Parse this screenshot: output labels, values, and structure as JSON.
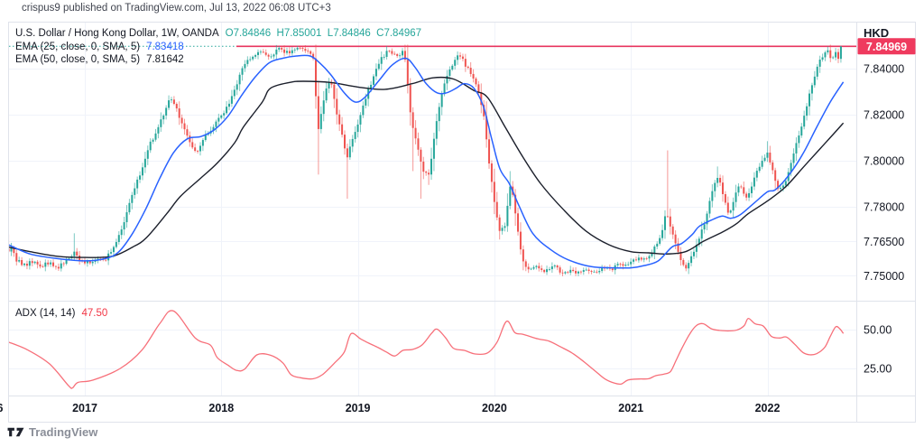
{
  "attribution": "crispus9 published on TradingView.com, Jul 13, 2022 06:08 UTC+3",
  "watermark": "TradingView",
  "legend": {
    "symbol": "U.S. Dollar / Hong Kong Dollar, 1W, OANDA",
    "ohlc": "O7.84846  H7.85001  L7.84846  C7.84967",
    "ema25_label": "EMA (25, close, 0, SMA, 5)",
    "ema25_value": "7.83418",
    "ema50_label": "EMA (50, close, 0, SMA, 5)",
    "ema50_value": "7.81642"
  },
  "adx_legend": {
    "label": "ADX (14, 14)",
    "value": "47.50"
  },
  "price_axis": {
    "currency": "HKD",
    "ticks": [
      {
        "label": "7.84000",
        "value": 7.84
      },
      {
        "label": "7.82000",
        "value": 7.82
      },
      {
        "label": "7.80000",
        "value": 7.8
      },
      {
        "label": "7.78000",
        "value": 7.78
      },
      {
        "label": "7.76500",
        "value": 7.765
      },
      {
        "label": "7.75000",
        "value": 7.75
      }
    ],
    "last_price_label": "7.84969",
    "last_price": 7.84969
  },
  "adx_axis": {
    "ticks": [
      {
        "label": "50.00",
        "value": 50
      },
      {
        "label": "25.00",
        "value": 25
      }
    ]
  },
  "time_axis": {
    "ticks": [
      {
        "label": "2017",
        "year": 2017
      },
      {
        "label": "2018",
        "year": 2018
      },
      {
        "label": "2019",
        "year": 2019
      },
      {
        "label": "2020",
        "year": 2020
      },
      {
        "label": "2021",
        "year": 2021
      },
      {
        "label": "2022",
        "year": 2022
      }
    ],
    "left_fragment": "6"
  },
  "colors": {
    "up": "#26a69a",
    "down": "#ef5350",
    "ema25": "#2962ff",
    "ema50": "#1b1f2b",
    "adx_line": "#f7707a",
    "adx_value": "#f23645",
    "price_line": "#e8345f",
    "dotted_price_line": "#26a69a",
    "badge_bg": "#ef3a5e",
    "badge_text": "#ffffff",
    "grid": "#f0f3fa",
    "border": "#e0e3eb",
    "axis_text": "#131722",
    "teal_text": "#26a69a",
    "muted_text": "#8a8e98"
  },
  "chart_data": {
    "type": "candlestick",
    "title": "U.S. Dollar / Hong Kong Dollar, 1W, OANDA",
    "panes": [
      "price with EMA(25) and EMA(50)",
      "ADX(14,14)"
    ],
    "x_domain_years": [
      2016.442,
      2022.556
    ],
    "price_axis_visible_range": [
      7.739,
      7.86
    ],
    "adx_axis_visible_range": [
      7.6,
      68.6
    ],
    "last_close": 7.84969,
    "horizontal_line": {
      "price": 7.84969,
      "start_year": 2018.11
    },
    "dotted_price_line_level": 7.84969,
    "close_anchors": [
      [
        2016.442,
        7.7605
      ],
      [
        2016.46,
        7.7625
      ],
      [
        2016.5,
        7.757
      ],
      [
        2016.56,
        7.7545
      ],
      [
        2016.62,
        7.7565
      ],
      [
        2016.68,
        7.754
      ],
      [
        2016.74,
        7.756
      ],
      [
        2016.8,
        7.7535
      ],
      [
        2016.86,
        7.7565
      ],
      [
        2016.92,
        7.7605
      ],
      [
        2016.96,
        7.757
      ],
      [
        2017.02,
        7.7555
      ],
      [
        2017.08,
        7.7575
      ],
      [
        2017.14,
        7.756
      ],
      [
        2017.18,
        7.7595
      ],
      [
        2017.24,
        7.7655
      ],
      [
        2017.3,
        7.7755
      ],
      [
        2017.36,
        7.7875
      ],
      [
        2017.42,
        7.797
      ],
      [
        2017.48,
        7.8075
      ],
      [
        2017.54,
        7.8145
      ],
      [
        2017.58,
        7.8205
      ],
      [
        2017.63,
        7.8275
      ],
      [
        2017.67,
        7.8225
      ],
      [
        2017.72,
        7.8155
      ],
      [
        2017.78,
        7.8065
      ],
      [
        2017.82,
        7.8035
      ],
      [
        2017.87,
        7.8095
      ],
      [
        2017.93,
        7.8145
      ],
      [
        2018.0,
        7.8195
      ],
      [
        2018.06,
        7.8245
      ],
      [
        2018.12,
        7.8345
      ],
      [
        2018.17,
        7.8425
      ],
      [
        2018.22,
        7.8455
      ],
      [
        2018.28,
        7.8475
      ],
      [
        2018.35,
        7.8445
      ],
      [
        2018.42,
        7.8485
      ],
      [
        2018.5,
        7.8465
      ],
      [
        2018.56,
        7.8485
      ],
      [
        2018.62,
        7.8475
      ],
      [
        2018.68,
        7.8445
      ],
      [
        2018.705,
        7.8115
      ],
      [
        2018.76,
        7.8305
      ],
      [
        2018.8,
        7.8355
      ],
      [
        2018.84,
        7.8215
      ],
      [
        2018.88,
        7.8115
      ],
      [
        2018.92,
        7.8015
      ],
      [
        2018.96,
        7.8085
      ],
      [
        2019.0,
        7.8165
      ],
      [
        2019.05,
        7.8265
      ],
      [
        2019.1,
        7.8345
      ],
      [
        2019.16,
        7.8435
      ],
      [
        2019.22,
        7.8475
      ],
      [
        2019.28,
        7.8455
      ],
      [
        2019.34,
        7.8475
      ],
      [
        2019.39,
        7.8185
      ],
      [
        2019.43,
        7.8085
      ],
      [
        2019.47,
        7.7965
      ],
      [
        2019.52,
        7.7945
      ],
      [
        2019.57,
        7.8145
      ],
      [
        2019.62,
        7.8305
      ],
      [
        2019.68,
        7.8405
      ],
      [
        2019.73,
        7.8465
      ],
      [
        2019.78,
        7.8425
      ],
      [
        2019.83,
        7.8375
      ],
      [
        2019.88,
        7.8305
      ],
      [
        2019.92,
        7.8205
      ],
      [
        2019.96,
        7.7995
      ],
      [
        2020.0,
        7.7815
      ],
      [
        2020.04,
        7.7695
      ],
      [
        2020.08,
        7.7725
      ],
      [
        2020.12,
        7.7905
      ],
      [
        2020.16,
        7.7755
      ],
      [
        2020.2,
        7.7575
      ],
      [
        2020.25,
        7.7525
      ],
      [
        2020.31,
        7.7535
      ],
      [
        2020.37,
        7.7515
      ],
      [
        2020.43,
        7.7545
      ],
      [
        2020.49,
        7.7515
      ],
      [
        2020.55,
        7.7525
      ],
      [
        2020.61,
        7.7515
      ],
      [
        2020.67,
        7.7525
      ],
      [
        2020.73,
        7.7515
      ],
      [
        2020.79,
        7.7535
      ],
      [
        2020.85,
        7.7525
      ],
      [
        2020.91,
        7.7555
      ],
      [
        2020.97,
        7.7545
      ],
      [
        2021.03,
        7.7575
      ],
      [
        2021.09,
        7.7565
      ],
      [
        2021.15,
        7.7605
      ],
      [
        2021.21,
        7.7655
      ],
      [
        2021.26,
        7.7775
      ],
      [
        2021.3,
        7.7695
      ],
      [
        2021.35,
        7.7595
      ],
      [
        2021.4,
        7.7535
      ],
      [
        2021.45,
        7.7595
      ],
      [
        2021.5,
        7.7655
      ],
      [
        2021.55,
        7.7755
      ],
      [
        2021.6,
        7.7875
      ],
      [
        2021.64,
        7.7935
      ],
      [
        2021.68,
        7.7845
      ],
      [
        2021.72,
        7.7765
      ],
      [
        2021.76,
        7.7845
      ],
      [
        2021.8,
        7.7895
      ],
      [
        2021.84,
        7.7825
      ],
      [
        2021.88,
        7.7885
      ],
      [
        2021.92,
        7.7945
      ],
      [
        2021.96,
        7.7995
      ],
      [
        2022.0,
        7.8035
      ],
      [
        2022.04,
        7.7955
      ],
      [
        2022.08,
        7.7865
      ],
      [
        2022.12,
        7.7895
      ],
      [
        2022.16,
        7.7965
      ],
      [
        2022.2,
        7.8045
      ],
      [
        2022.24,
        7.8135
      ],
      [
        2022.28,
        7.8225
      ],
      [
        2022.32,
        7.8315
      ],
      [
        2022.36,
        7.8395
      ],
      [
        2022.4,
        7.8455
      ],
      [
        2022.44,
        7.8485
      ],
      [
        2022.47,
        7.8435
      ],
      [
        2022.5,
        7.8475
      ],
      [
        2022.52,
        7.8445
      ],
      [
        2022.556,
        7.84969
      ]
    ],
    "wick_spikes": [
      {
        "t": 2016.444,
        "hi": 7.768
      },
      {
        "t": 2016.93,
        "hi": 7.7685
      },
      {
        "t": 2018.705,
        "lo": 7.794
      },
      {
        "t": 2018.92,
        "lo": 7.7835
      },
      {
        "t": 2019.4,
        "lo": 7.7955
      },
      {
        "t": 2019.47,
        "lo": 7.7835
      },
      {
        "t": 2019.52,
        "lo": 7.7895
      },
      {
        "t": 2020.12,
        "hi": 7.7955
      },
      {
        "t": 2021.26,
        "hi": 7.8045
      },
      {
        "t": 2021.64,
        "hi": 7.7975
      },
      {
        "t": 2022.0,
        "hi": 7.8085
      }
    ],
    "ema25_anchors": [
      [
        2016.442,
        7.7635
      ],
      [
        2016.6,
        7.7595
      ],
      [
        2016.8,
        7.7575
      ],
      [
        2017.0,
        7.7565
      ],
      [
        2017.15,
        7.7575
      ],
      [
        2017.25,
        7.7605
      ],
      [
        2017.35,
        7.7685
      ],
      [
        2017.45,
        7.7795
      ],
      [
        2017.55,
        7.7925
      ],
      [
        2017.65,
        7.8035
      ],
      [
        2017.75,
        7.8095
      ],
      [
        2017.85,
        7.8105
      ],
      [
        2017.95,
        7.8135
      ],
      [
        2018.05,
        7.8195
      ],
      [
        2018.15,
        7.8285
      ],
      [
        2018.25,
        7.8365
      ],
      [
        2018.35,
        7.8425
      ],
      [
        2018.45,
        7.8445
      ],
      [
        2018.55,
        7.8455
      ],
      [
        2018.65,
        7.8455
      ],
      [
        2018.72,
        7.8425
      ],
      [
        2018.8,
        7.8375
      ],
      [
        2018.9,
        7.8295
      ],
      [
        2018.98,
        7.8255
      ],
      [
        2019.05,
        7.8275
      ],
      [
        2019.15,
        7.8345
      ],
      [
        2019.25,
        7.8415
      ],
      [
        2019.35,
        7.8445
      ],
      [
        2019.42,
        7.8405
      ],
      [
        2019.5,
        7.8335
      ],
      [
        2019.58,
        7.8295
      ],
      [
        2019.65,
        7.8295
      ],
      [
        2019.72,
        7.8315
      ],
      [
        2019.78,
        7.8335
      ],
      [
        2019.85,
        7.8315
      ],
      [
        2019.92,
        7.8235
      ],
      [
        2019.98,
        7.8095
      ],
      [
        2020.04,
        7.7965
      ],
      [
        2020.11,
        7.79
      ],
      [
        2020.18,
        7.7805
      ],
      [
        2020.28,
        7.7685
      ],
      [
        2020.41,
        7.7615
      ],
      [
        2020.54,
        7.757
      ],
      [
        2020.71,
        7.754
      ],
      [
        2020.87,
        7.7535
      ],
      [
        2021.0,
        7.7535
      ],
      [
        2021.1,
        7.7545
      ],
      [
        2021.2,
        7.7565
      ],
      [
        2021.3,
        7.7625
      ],
      [
        2021.37,
        7.764
      ],
      [
        2021.45,
        7.768
      ],
      [
        2021.5,
        7.7715
      ],
      [
        2021.6,
        7.7745
      ],
      [
        2021.67,
        7.776
      ],
      [
        2021.73,
        7.775
      ],
      [
        2021.8,
        7.7765
      ],
      [
        2021.9,
        7.7815
      ],
      [
        2022.0,
        7.7865
      ],
      [
        2022.06,
        7.7875
      ],
      [
        2022.16,
        7.794
      ],
      [
        2022.26,
        7.803
      ],
      [
        2022.36,
        7.8145
      ],
      [
        2022.46,
        7.8255
      ],
      [
        2022.556,
        7.8342
      ]
    ],
    "ema50_anchors": [
      [
        2016.442,
        7.7625
      ],
      [
        2016.6,
        7.7605
      ],
      [
        2016.8,
        7.7585
      ],
      [
        2017.0,
        7.758
      ],
      [
        2017.2,
        7.7585
      ],
      [
        2017.35,
        7.7625
      ],
      [
        2017.45,
        7.7665
      ],
      [
        2017.6,
        7.777
      ],
      [
        2017.7,
        7.7845
      ],
      [
        2017.85,
        7.7925
      ],
      [
        2017.97,
        7.799
      ],
      [
        2018.1,
        7.808
      ],
      [
        2018.16,
        7.8145
      ],
      [
        2018.3,
        7.8255
      ],
      [
        2018.36,
        7.8315
      ],
      [
        2018.5,
        7.834
      ],
      [
        2018.6,
        7.8345
      ],
      [
        2018.8,
        7.834
      ],
      [
        2019.0,
        7.832
      ],
      [
        2019.2,
        7.831
      ],
      [
        2019.4,
        7.8335
      ],
      [
        2019.55,
        7.836
      ],
      [
        2019.7,
        7.8355
      ],
      [
        2019.85,
        7.8305
      ],
      [
        2019.95,
        7.8275
      ],
      [
        2020.08,
        7.8145
      ],
      [
        2020.21,
        7.8015
      ],
      [
        2020.34,
        7.79
      ],
      [
        2020.51,
        7.7785
      ],
      [
        2020.67,
        7.7695
      ],
      [
        2020.84,
        7.7635
      ],
      [
        2021.0,
        7.7605
      ],
      [
        2021.13,
        7.76
      ],
      [
        2021.25,
        7.7595
      ],
      [
        2021.4,
        7.7605
      ],
      [
        2021.53,
        7.765
      ],
      [
        2021.67,
        7.769
      ],
      [
        2021.77,
        7.7725
      ],
      [
        2021.86,
        7.777
      ],
      [
        2022.0,
        7.7825
      ],
      [
        2022.13,
        7.7885
      ],
      [
        2022.26,
        7.797
      ],
      [
        2022.39,
        7.8055
      ],
      [
        2022.49,
        7.812
      ],
      [
        2022.556,
        7.8164
      ]
    ],
    "adx_anchors": [
      [
        2016.44,
        42
      ],
      [
        2016.58,
        37
      ],
      [
        2016.74,
        28
      ],
      [
        2016.88,
        14
      ],
      [
        2016.91,
        12.5
      ],
      [
        2016.95,
        16
      ],
      [
        2017.06,
        17.5
      ],
      [
        2017.26,
        25
      ],
      [
        2017.42,
        37
      ],
      [
        2017.55,
        54
      ],
      [
        2017.65,
        62
      ],
      [
        2017.81,
        44.5
      ],
      [
        2017.92,
        40
      ],
      [
        2017.97,
        32
      ],
      [
        2018.05,
        27
      ],
      [
        2018.11,
        23.8
      ],
      [
        2018.17,
        24.5
      ],
      [
        2018.26,
        33.7
      ],
      [
        2018.36,
        33.5
      ],
      [
        2018.45,
        28.6
      ],
      [
        2018.51,
        21
      ],
      [
        2018.58,
        19
      ],
      [
        2018.67,
        18.3
      ],
      [
        2018.74,
        21
      ],
      [
        2018.83,
        28.6
      ],
      [
        2018.9,
        35.5
      ],
      [
        2018.95,
        47.3
      ],
      [
        2019.02,
        44
      ],
      [
        2019.08,
        41.3
      ],
      [
        2019.15,
        38.4
      ],
      [
        2019.21,
        35.5
      ],
      [
        2019.27,
        33
      ],
      [
        2019.33,
        36.6
      ],
      [
        2019.4,
        37.2
      ],
      [
        2019.47,
        40.1
      ],
      [
        2019.54,
        47.6
      ],
      [
        2019.58,
        50.3
      ],
      [
        2019.64,
        45
      ],
      [
        2019.7,
        38
      ],
      [
        2019.78,
        36.6
      ],
      [
        2019.86,
        34.3
      ],
      [
        2019.95,
        35
      ],
      [
        2020.02,
        42
      ],
      [
        2020.09,
        55.4
      ],
      [
        2020.15,
        48
      ],
      [
        2020.21,
        47
      ],
      [
        2020.32,
        44
      ],
      [
        2020.4,
        42.6
      ],
      [
        2020.48,
        39.1
      ],
      [
        2020.57,
        34.9
      ],
      [
        2020.66,
        29
      ],
      [
        2020.74,
        23.2
      ],
      [
        2020.81,
        18.2
      ],
      [
        2020.88,
        15.5
      ],
      [
        2020.93,
        15
      ],
      [
        2020.98,
        17.6
      ],
      [
        2021.06,
        18.2
      ],
      [
        2021.13,
        18.4
      ],
      [
        2021.18,
        20.3
      ],
      [
        2021.24,
        21.3
      ],
      [
        2021.29,
        23
      ],
      [
        2021.33,
        30
      ],
      [
        2021.37,
        37.4
      ],
      [
        2021.43,
        47.1
      ],
      [
        2021.48,
        52.6
      ],
      [
        2021.53,
        53.8
      ],
      [
        2021.59,
        50.5
      ],
      [
        2021.65,
        49.5
      ],
      [
        2021.72,
        49.2
      ],
      [
        2021.78,
        49.8
      ],
      [
        2021.83,
        52.6
      ],
      [
        2021.86,
        57.2
      ],
      [
        2021.91,
        53.7
      ],
      [
        2021.97,
        52.2
      ],
      [
        2022.03,
        45.6
      ],
      [
        2022.09,
        44.6
      ],
      [
        2022.14,
        45.2
      ],
      [
        2022.2,
        40.5
      ],
      [
        2022.26,
        35.3
      ],
      [
        2022.31,
        33.8
      ],
      [
        2022.36,
        34.5
      ],
      [
        2022.42,
        38.6
      ],
      [
        2022.46,
        45.6
      ],
      [
        2022.5,
        51.8
      ],
      [
        2022.53,
        50.5
      ],
      [
        2022.556,
        47.5
      ]
    ]
  }
}
